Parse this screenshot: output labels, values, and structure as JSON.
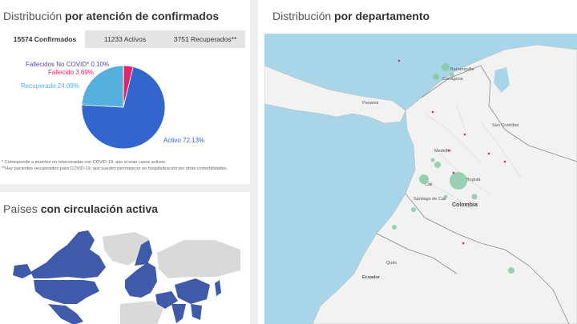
{
  "left_panel": {
    "title_light": "Distribución",
    "title_bold": "por atención de confirmados",
    "tabs": [
      {
        "label": "15574 Confirmados",
        "active": true
      },
      {
        "label": "11233 Activos",
        "active": false
      },
      {
        "label": "3751 Recuperados**",
        "active": false
      }
    ],
    "footnote1": "* Corresponde a muertes no relacionadas con COVID-19, aún si eran casos activos",
    "footnote2": "**Hay pacientes recuperados para COVID-19, que pueden permanecer en hospitalización por otras comorbilidades."
  },
  "chart_data": {
    "type": "pie",
    "slices": [
      {
        "label": "Activo",
        "value": 72.13,
        "display": "Activo 72.13%",
        "color": "#3366cc"
      },
      {
        "label": "Recuperado",
        "value": 24.09,
        "display": "Recuperado 24.09%",
        "color": "#55b0e0"
      },
      {
        "label": "Fallecido",
        "value": 3.69,
        "display": "Fallecido 3.69%",
        "color": "#e0256b"
      },
      {
        "label": "Fallecidos No COVID*",
        "value": 0.1,
        "display": "Fallecidos No COVID* 0.10%",
        "color": "#5b4a9e"
      }
    ]
  },
  "countries_panel": {
    "title_light": "Países",
    "title_bold": "con circulación activa",
    "highlight_color": "#3f5aa8",
    "base_color": "#d9d9d9"
  },
  "right_panel": {
    "title_light": "Distribución",
    "title_bold": "por departamento",
    "place_labels": {
      "barranquilla": "Barranquilla",
      "cartagena": "Cartagena",
      "panama": "Panamá",
      "san_cristobal": "San Cristóbal",
      "medellin": "Medellín",
      "bogota": "Bogotá",
      "cali": "Cali",
      "santiago_de_cali": "Santiago de Cali",
      "colombia": "Colombia",
      "quito": "Quito",
      "ecuador": "Ecuador"
    },
    "bubble_color": "#7fc8a0",
    "dot_color": "#e0256b"
  }
}
